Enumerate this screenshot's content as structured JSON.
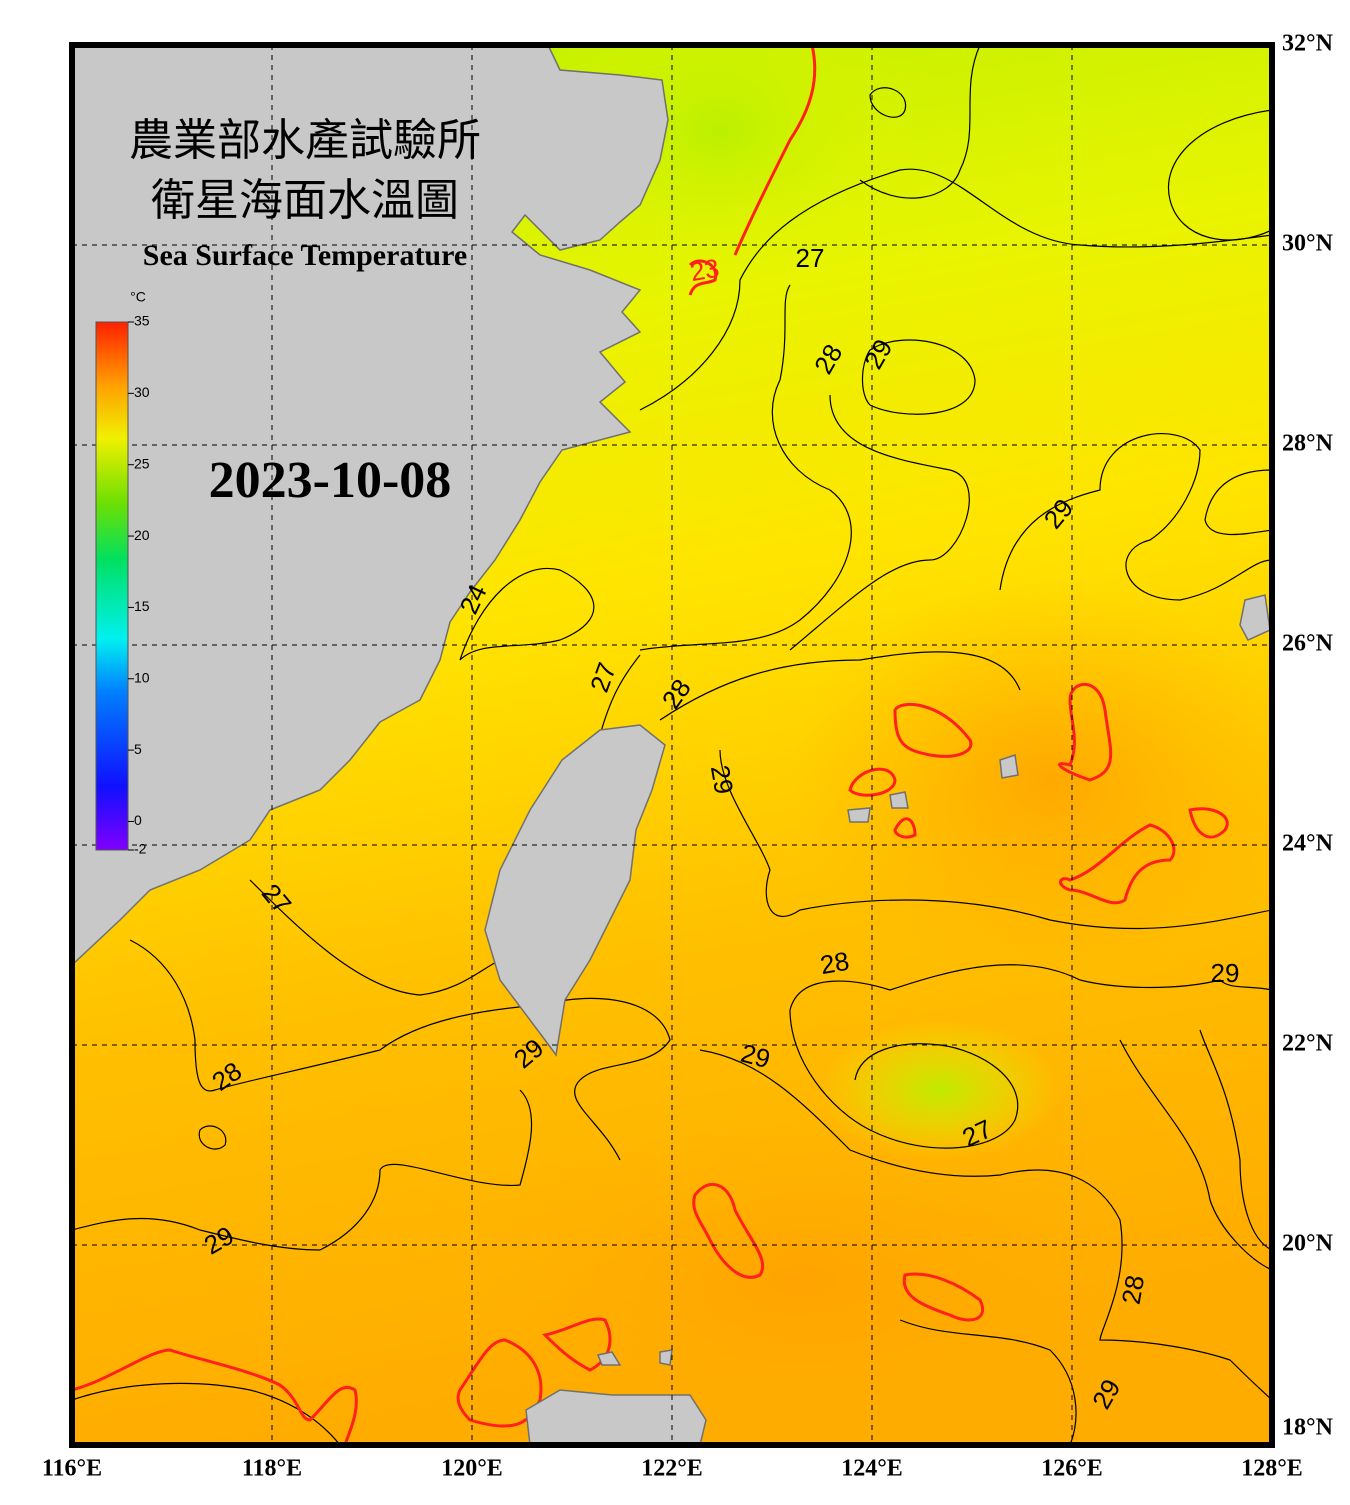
{
  "map": {
    "title_lines": [
      "農業部水產試驗所",
      "衛星海面水溫圖"
    ],
    "subtitle": "Sea Surface Temperature",
    "date": "2023-10-08",
    "lon_range": [
      116,
      128
    ],
    "lat_range": [
      18,
      32
    ],
    "lon_ticks": [
      {
        "value": 116,
        "label": "116°E"
      },
      {
        "value": 118,
        "label": "118°E"
      },
      {
        "value": 120,
        "label": "120°E"
      },
      {
        "value": 122,
        "label": "122°E"
      },
      {
        "value": 124,
        "label": "124°E"
      },
      {
        "value": 126,
        "label": "126°E"
      },
      {
        "value": 128,
        "label": "128°E"
      }
    ],
    "lat_ticks": [
      {
        "value": 18,
        "label": "18°N"
      },
      {
        "value": 20,
        "label": "20°N"
      },
      {
        "value": 22,
        "label": "22°N"
      },
      {
        "value": 24,
        "label": "24°N"
      },
      {
        "value": 26,
        "label": "26°N"
      },
      {
        "value": 28,
        "label": "28°N"
      },
      {
        "value": 30,
        "label": "30°N"
      },
      {
        "value": 32,
        "label": "32°N"
      }
    ],
    "colorbar": {
      "unit": "°C",
      "range": [
        -2,
        35
      ],
      "ticks": [
        -2,
        0,
        5,
        10,
        15,
        20,
        25,
        30,
        35
      ]
    },
    "contour_labels": [
      {
        "value": 27,
        "lon": 123.38,
        "lat": 29.85,
        "angle": 0
      },
      {
        "value": 28,
        "lon": 123.58,
        "lat": 28.85,
        "angle": -60
      },
      {
        "value": 29,
        "lon": 124.08,
        "lat": 28.9,
        "angle": -60
      },
      {
        "value": 29,
        "lon": 125.88,
        "lat": 27.3,
        "angle": -50
      },
      {
        "value": 24,
        "lon": 120.03,
        "lat": 26.45,
        "angle": -65
      },
      {
        "value": 27,
        "lon": 121.33,
        "lat": 25.67,
        "angle": -70
      },
      {
        "value": 28,
        "lon": 122.06,
        "lat": 25.5,
        "angle": -55
      },
      {
        "value": 29,
        "lon": 122.48,
        "lat": 24.65,
        "angle": 80
      },
      {
        "value": 27,
        "lon": 118.03,
        "lat": 23.45,
        "angle": 50
      },
      {
        "value": 28,
        "lon": 123.63,
        "lat": 22.8,
        "angle": -10
      },
      {
        "value": 29,
        "lon": 127.53,
        "lat": 22.7,
        "angle": 0
      },
      {
        "value": 29,
        "lon": 120.58,
        "lat": 21.9,
        "angle": -40
      },
      {
        "value": 29,
        "lon": 122.83,
        "lat": 21.87,
        "angle": 15
      },
      {
        "value": 28,
        "lon": 117.56,
        "lat": 21.67,
        "angle": -35
      },
      {
        "value": 27,
        "lon": 125.06,
        "lat": 21.1,
        "angle": -25
      },
      {
        "value": 29,
        "lon": 117.48,
        "lat": 20.03,
        "angle": -30
      },
      {
        "value": 28,
        "lon": 126.63,
        "lat": 19.55,
        "angle": -80
      },
      {
        "value": 29,
        "lon": 126.36,
        "lat": 18.5,
        "angle": -60
      },
      {
        "value": 23,
        "lon": 122.33,
        "lat": 29.73,
        "angle": -10,
        "color": "#ff2020"
      }
    ]
  }
}
